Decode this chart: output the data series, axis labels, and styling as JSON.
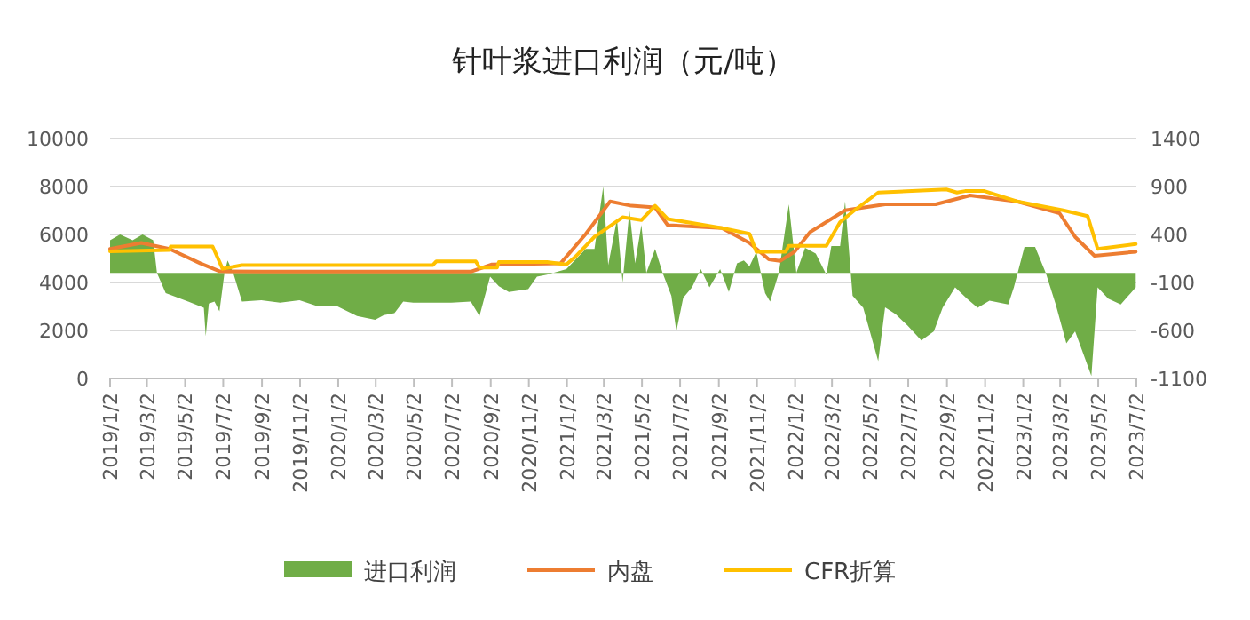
{
  "chart_data": {
    "type": "line",
    "title": "针叶浆进口利润（元/吨）",
    "legend": "bottom",
    "grid": "y",
    "xlim": [
      "2019-01-02",
      "2023-07-02"
    ],
    "xticks": [
      {
        "value": "2019-01-02",
        "label": "2019/1/2"
      },
      {
        "value": "2019-03-02",
        "label": "2019/3/2"
      },
      {
        "value": "2019-05-02",
        "label": "2019/5/2"
      },
      {
        "value": "2019-07-02",
        "label": "2019/7/2"
      },
      {
        "value": "2019-09-02",
        "label": "2019/9/2"
      },
      {
        "value": "2019-11-02",
        "label": "2019/11/2"
      },
      {
        "value": "2020-01-02",
        "label": "2020/1/2"
      },
      {
        "value": "2020-03-02",
        "label": "2020/3/2"
      },
      {
        "value": "2020-05-02",
        "label": "2020/5/2"
      },
      {
        "value": "2020-07-02",
        "label": "2020/7/2"
      },
      {
        "value": "2020-09-02",
        "label": "2020/9/2"
      },
      {
        "value": "2020-11-02",
        "label": "2020/11/2"
      },
      {
        "value": "2021-01-02",
        "label": "2021/1/2"
      },
      {
        "value": "2021-03-02",
        "label": "2021/3/2"
      },
      {
        "value": "2021-05-02",
        "label": "2021/5/2"
      },
      {
        "value": "2021-07-02",
        "label": "2021/7/2"
      },
      {
        "value": "2021-09-02",
        "label": "2021/9/2"
      },
      {
        "value": "2021-11-02",
        "label": "2021/11/2"
      },
      {
        "value": "2022-01-02",
        "label": "2022/1/2"
      },
      {
        "value": "2022-03-02",
        "label": "2022/3/2"
      },
      {
        "value": "2022-05-02",
        "label": "2022/5/2"
      },
      {
        "value": "2022-07-02",
        "label": "2022/7/2"
      },
      {
        "value": "2022-09-02",
        "label": "2022/9/2"
      },
      {
        "value": "2022-11-02",
        "label": "2022/11/2"
      },
      {
        "value": "2023-01-02",
        "label": "2023/1/2"
      },
      {
        "value": "2023-03-02",
        "label": "2023/3/2"
      },
      {
        "value": "2023-05-02",
        "label": "2023/5/2"
      },
      {
        "value": "2023-07-02",
        "label": "2023/7/2"
      }
    ],
    "ylim": [
      0,
      10000
    ],
    "yticks": [
      0,
      2000,
      4000,
      6000,
      8000,
      10000
    ],
    "y2lim": [
      -1100,
      1400
    ],
    "y2ticks": [
      -1100,
      -600,
      -100,
      400,
      900,
      1400
    ],
    "series": [
      {
        "name": "进口利润",
        "type": "area",
        "axis": "y2",
        "color": "#70ad47",
        "x": [
          "2019-01-02",
          "2019-01-18",
          "2019-02-07",
          "2019-02-23",
          "2019-03-12",
          "2019-03-18",
          "2019-04-01",
          "2019-05-07",
          "2019-06-01",
          "2019-06-04",
          "2019-06-09",
          "2019-06-18",
          "2019-06-26",
          "2019-07-04",
          "2019-07-09",
          "2019-07-18",
          "2019-08-01",
          "2019-09-01",
          "2019-10-01",
          "2019-11-01",
          "2019-12-01",
          "2020-01-01",
          "2020-02-01",
          "2020-03-01",
          "2020-03-15",
          "2020-04-01",
          "2020-04-15",
          "2020-05-01",
          "2020-06-01",
          "2020-07-01",
          "2020-08-01",
          "2020-08-15",
          "2020-09-01",
          "2020-09-15",
          "2020-10-01",
          "2020-11-01",
          "2020-11-15",
          "2020-12-01",
          "2021-01-01",
          "2021-02-01",
          "2021-02-15",
          "2021-03-01",
          "2021-03-09",
          "2021-03-23",
          "2021-04-01",
          "2021-04-12",
          "2021-04-21",
          "2021-05-01",
          "2021-05-09",
          "2021-05-23",
          "2021-06-04",
          "2021-06-18",
          "2021-06-26",
          "2021-07-07",
          "2021-07-21",
          "2021-08-04",
          "2021-08-18",
          "2021-09-04",
          "2021-09-18",
          "2021-10-01",
          "2021-10-12",
          "2021-10-21",
          "2021-11-01",
          "2021-11-15",
          "2021-11-23",
          "2021-12-07",
          "2021-12-23",
          "2022-01-04",
          "2022-01-18",
          "2022-02-04",
          "2022-02-21",
          "2022-03-01",
          "2022-03-15",
          "2022-03-23",
          "2022-04-04",
          "2022-04-21",
          "2022-05-15",
          "2022-05-26",
          "2022-06-12",
          "2022-07-01",
          "2022-07-23",
          "2022-08-12",
          "2022-08-26",
          "2022-09-15",
          "2022-10-04",
          "2022-10-21",
          "2022-11-09",
          "2022-12-09",
          "2022-12-18",
          "2023-01-04",
          "2023-01-21",
          "2023-02-07",
          "2023-02-23",
          "2023-03-12",
          "2023-03-26",
          "2023-04-09",
          "2023-04-21",
          "2023-05-01",
          "2023-05-18",
          "2023-06-07",
          "2023-06-23",
          "2023-07-01"
        ],
        "values": [
          340,
          400,
          340,
          400,
          340,
          0,
          -210,
          -300,
          -365,
          -660,
          -320,
          -300,
          -400,
          0,
          130,
          0,
          -300,
          -285,
          -310,
          -285,
          -350,
          -350,
          -450,
          -490,
          -440,
          -420,
          -300,
          -310,
          -310,
          -310,
          -300,
          -450,
          -40,
          -140,
          -200,
          -170,
          -40,
          -20,
          40,
          250,
          250,
          900,
          80,
          560,
          -100,
          650,
          100,
          500,
          0,
          250,
          0,
          -240,
          -610,
          -260,
          -150,
          40,
          -150,
          40,
          -200,
          100,
          130,
          70,
          220,
          -210,
          -300,
          0,
          715,
          0,
          260,
          200,
          -20,
          280,
          280,
          745,
          -240,
          -365,
          -920,
          -360,
          -430,
          -550,
          -705,
          -610,
          -365,
          -150,
          -270,
          -365,
          -290,
          -330,
          -150,
          270,
          270,
          0,
          -330,
          -735,
          -610,
          -860,
          -1075,
          -150,
          -270,
          -330,
          -210,
          -150
        ]
      },
      {
        "name": "内盘",
        "type": "line",
        "color": "#ed7d31",
        "x": [
          "2019-01-02",
          "2019-02-21",
          "2019-04-07",
          "2019-05-26",
          "2019-06-26",
          "2019-09-01",
          "2020-01-01",
          "2020-05-01",
          "2020-08-01",
          "2020-09-04",
          "2020-12-23",
          "2021-02-01",
          "2021-03-12",
          "2021-04-15",
          "2021-05-23",
          "2021-06-12",
          "2021-09-07",
          "2021-10-21",
          "2021-11-21",
          "2021-12-09",
          "2022-01-01",
          "2022-01-26",
          "2022-03-23",
          "2022-05-26",
          "2022-08-15",
          "2022-10-09",
          "2022-12-23",
          "2023-03-01",
          "2023-03-26",
          "2023-04-26",
          "2023-07-01"
        ],
        "values": [
          5400,
          5650,
          5400,
          4800,
          4470,
          4450,
          4450,
          4450,
          4450,
          4750,
          4800,
          6020,
          7380,
          7200,
          7130,
          6390,
          6270,
          5650,
          4960,
          4900,
          5280,
          6100,
          7010,
          7260,
          7260,
          7630,
          7380,
          6890,
          5900,
          5110,
          5280
        ]
      },
      {
        "name": "CFR折算",
        "type": "line",
        "color": "#ffc000",
        "x": [
          "2019-01-02",
          "2019-04-07",
          "2019-04-09",
          "2019-06-15",
          "2019-07-01",
          "2019-08-01",
          "2020-06-01",
          "2020-06-07",
          "2020-08-09",
          "2020-08-15",
          "2020-09-12",
          "2020-09-15",
          "2020-12-01",
          "2021-01-01",
          "2021-01-15",
          "2021-02-15",
          "2021-04-01",
          "2021-05-01",
          "2021-05-23",
          "2021-06-12",
          "2021-09-07",
          "2021-10-21",
          "2021-11-01",
          "2021-12-18",
          "2021-12-23",
          "2022-02-21",
          "2022-03-15",
          "2022-04-07",
          "2022-05-15",
          "2022-09-01",
          "2022-09-18",
          "2022-10-01",
          "2022-11-01",
          "2022-12-23",
          "2023-03-07",
          "2023-04-15",
          "2023-05-01",
          "2023-07-01"
        ],
        "values": [
          5300,
          5350,
          5500,
          5500,
          4570,
          4720,
          4720,
          4880,
          4880,
          4620,
          4620,
          4850,
          4850,
          4750,
          5060,
          5900,
          6720,
          6600,
          7200,
          6650,
          6270,
          6030,
          5280,
          5280,
          5530,
          5530,
          6520,
          7010,
          7750,
          7880,
          7750,
          7810,
          7810,
          7380,
          7010,
          6770,
          5400,
          5600
        ]
      }
    ]
  }
}
